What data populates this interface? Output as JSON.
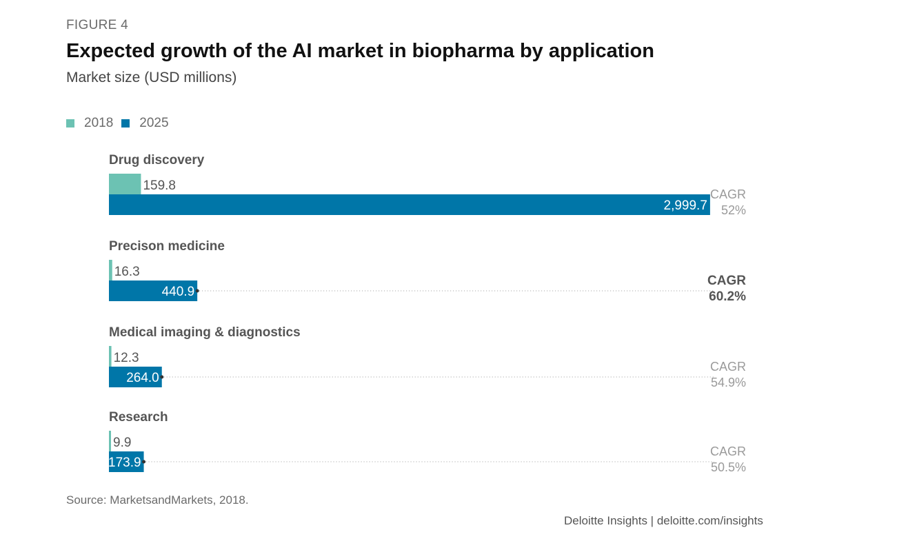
{
  "figure_label": "FIGURE 4",
  "source": "Source: MarketsandMarkets, 2018.",
  "credit": "Deloitte Insights | deloitte.com/insights",
  "colors": {
    "series_2018": "#6cc2b3",
    "series_2025": "#0076a8",
    "text_dark": "#444444",
    "text_muted": "#8a8a8a"
  },
  "chart_data": {
    "type": "bar",
    "orientation": "horizontal",
    "title": "Expected growth of the AI market in biopharma by application",
    "subtitle": "Market size (USD millions)",
    "legend_position": "top-left",
    "grid": false,
    "xlim": [
      0,
      3000
    ],
    "series": [
      {
        "name": "2018",
        "values": [
          159.8,
          16.3,
          12.3,
          9.9
        ],
        "labels": [
          "159.8",
          "16.3",
          "12.3",
          "9.9"
        ]
      },
      {
        "name": "2025",
        "values": [
          2999.7,
          440.9,
          264.0,
          173.9
        ],
        "labels": [
          "2,999.7",
          "440.9",
          "264.0",
          "173.9"
        ]
      }
    ],
    "categories": [
      "Drug discovery",
      "Precison medicine",
      "Medical imaging & diagnostics",
      "Research"
    ],
    "annotations": [
      {
        "label": "CAGR",
        "value": "52%",
        "emphasis": false
      },
      {
        "label": "CAGR",
        "value": "60.2%",
        "emphasis": true
      },
      {
        "label": "CAGR",
        "value": "54.9%",
        "emphasis": false
      },
      {
        "label": "CAGR",
        "value": "50.5%",
        "emphasis": false
      }
    ]
  }
}
